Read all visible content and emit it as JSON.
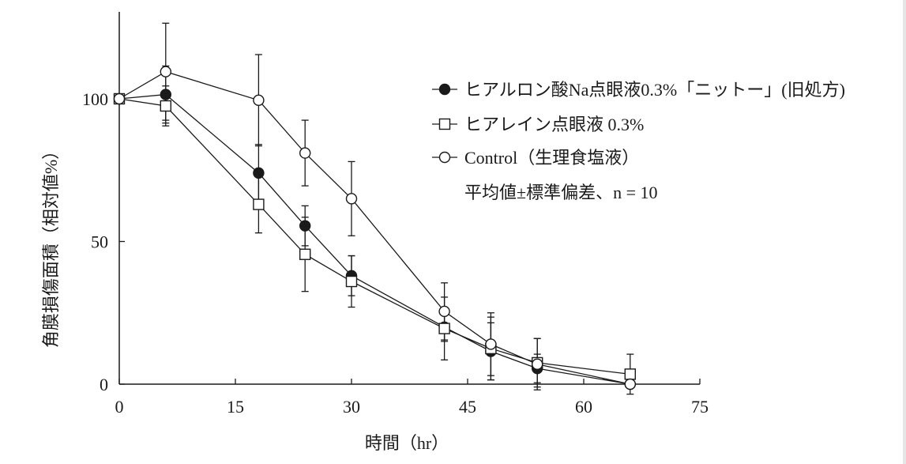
{
  "chart_data": {
    "type": "line",
    "title": "",
    "xlabel": "時間（hr）",
    "ylabel": "角膜損傷面積（相対値%）",
    "xlim": [
      0,
      75
    ],
    "ylim": [
      0,
      130
    ],
    "xticks": [
      0,
      15,
      30,
      45,
      60,
      75
    ],
    "yticks": [
      0,
      50,
      100
    ],
    "note": "平均値±標準偏差、n = 10",
    "legend_position": "top-right",
    "series": [
      {
        "name": "ヒアルロン酸Na点眼液0.3%「ニットー」(旧処方)",
        "marker": "filled-circle",
        "x": [
          0,
          6,
          18,
          24,
          30,
          42,
          48,
          54,
          66
        ],
        "y": [
          100,
          101.5,
          74,
          55.5,
          38,
          20,
          11.5,
          5.5,
          0
        ],
        "err": [
          0,
          10,
          10,
          7,
          7,
          5,
          10,
          5,
          0
        ]
      },
      {
        "name": "ヒアレイン点眼液 0.3%",
        "marker": "open-square",
        "x": [
          0,
          6,
          18,
          24,
          30,
          42,
          48,
          54,
          66
        ],
        "y": [
          100,
          97.5,
          63,
          45.5,
          36,
          19.5,
          12.5,
          7.5,
          3.5
        ],
        "err": [
          0,
          7,
          10,
          13,
          9,
          11,
          11,
          8.5,
          7
        ]
      },
      {
        "name": "Control（生理食塩液）",
        "marker": "open-circle",
        "x": [
          0,
          6,
          18,
          24,
          30,
          42,
          48,
          54,
          66
        ],
        "y": [
          100,
          109.5,
          99.5,
          81,
          65,
          25.5,
          14,
          7,
          0
        ],
        "err": [
          0,
          17,
          16,
          11.5,
          13,
          10,
          11,
          9,
          0
        ]
      }
    ]
  }
}
